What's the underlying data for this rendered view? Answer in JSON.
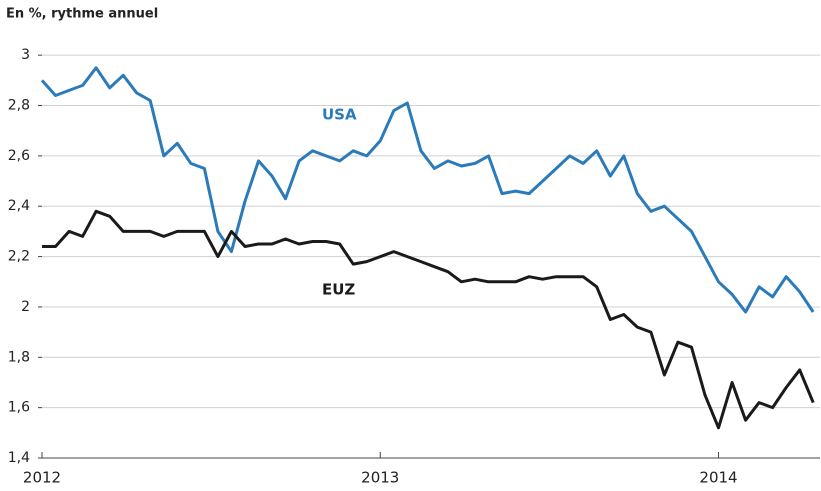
{
  "chart_data": {
    "type": "line",
    "title": "En %, rythme annuel",
    "x": [
      2012.0,
      2012.04,
      2012.08,
      2012.12,
      2012.16,
      2012.2,
      2012.24,
      2012.28,
      2012.32,
      2012.36,
      2012.4,
      2012.44,
      2012.48,
      2012.52,
      2012.56,
      2012.6,
      2012.64,
      2012.68,
      2012.72,
      2012.76,
      2012.8,
      2012.84,
      2012.88,
      2012.92,
      2012.96,
      2013.0,
      2013.04,
      2013.08,
      2013.12,
      2013.16,
      2013.2,
      2013.24,
      2013.28,
      2013.32,
      2013.36,
      2013.4,
      2013.44,
      2013.48,
      2013.52,
      2013.56,
      2013.6,
      2013.64,
      2013.68,
      2013.72,
      2013.76,
      2013.8,
      2013.84,
      2013.88,
      2013.92,
      2013.96,
      2014.0,
      2014.04,
      2014.08,
      2014.12,
      2014.16,
      2014.2,
      2014.24,
      2014.28
    ],
    "series": [
      {
        "name": "USA",
        "color": "#2b7bba",
        "values": [
          2.9,
          2.84,
          2.86,
          2.88,
          2.95,
          2.87,
          2.92,
          2.85,
          2.82,
          2.6,
          2.65,
          2.57,
          2.55,
          2.3,
          2.22,
          2.42,
          2.58,
          2.52,
          2.43,
          2.58,
          2.62,
          2.6,
          2.58,
          2.62,
          2.6,
          2.66,
          2.78,
          2.81,
          2.62,
          2.55,
          2.58,
          2.56,
          2.57,
          2.6,
          2.45,
          2.46,
          2.45,
          2.5,
          2.55,
          2.6,
          2.57,
          2.62,
          2.52,
          2.6,
          2.45,
          2.38,
          2.4,
          2.35,
          2.3,
          2.2,
          2.1,
          2.05,
          1.98,
          2.08,
          2.04,
          2.12,
          2.06,
          1.98
        ]
      },
      {
        "name": "EUZ",
        "color": "#1a1a1a",
        "values": [
          2.24,
          2.24,
          2.3,
          2.28,
          2.38,
          2.36,
          2.3,
          2.3,
          2.3,
          2.28,
          2.3,
          2.3,
          2.3,
          2.2,
          2.3,
          2.24,
          2.25,
          2.25,
          2.27,
          2.25,
          2.26,
          2.26,
          2.25,
          2.17,
          2.18,
          2.2,
          2.22,
          2.2,
          2.18,
          2.16,
          2.14,
          2.1,
          2.11,
          2.1,
          2.1,
          2.1,
          2.12,
          2.11,
          2.12,
          2.12,
          2.12,
          2.08,
          1.95,
          1.97,
          1.92,
          1.9,
          1.73,
          1.86,
          1.84,
          1.65,
          1.52,
          1.7,
          1.55,
          1.62,
          1.6,
          1.68,
          1.75,
          1.62
        ]
      }
    ],
    "xlim": [
      2012,
      2014.3
    ],
    "xticks": [
      2012,
      2013,
      2014
    ],
    "ylim": [
      1.4,
      3.1
    ],
    "yticks": [
      {
        "value": 1.4,
        "label": "1,4"
      },
      {
        "value": 1.6,
        "label": "1,6"
      },
      {
        "value": 1.8,
        "label": "1,8"
      },
      2,
      {
        "value": 2.2,
        "label": "2,2"
      },
      {
        "value": 2.4,
        "label": "2,4"
      },
      {
        "value": 2.6,
        "label": "2,6"
      },
      {
        "value": 2.8,
        "label": "2,8"
      },
      3
    ],
    "grid": true
  }
}
